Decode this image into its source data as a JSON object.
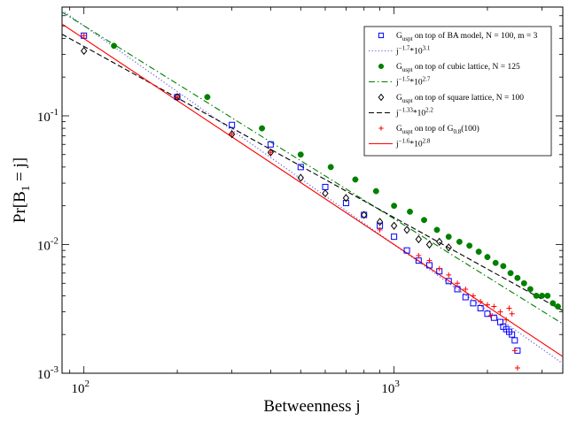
{
  "chart_data": {
    "type": "scatter",
    "xlabel": "Betweenness j",
    "ylabel": "Pr[B_1 = j]",
    "xscale": "log",
    "yscale": "log",
    "xlim": [
      85,
      3500
    ],
    "ylim": [
      0.001,
      0.7
    ],
    "x_ticks": [
      {
        "value": 100,
        "base": "10",
        "exp": "2"
      },
      {
        "value": 1000,
        "base": "10",
        "exp": "3"
      }
    ],
    "y_ticks": [
      {
        "value": 0.001,
        "base": "10",
        "exp": "-3"
      },
      {
        "value": 0.01,
        "base": "10",
        "exp": "-2"
      },
      {
        "value": 0.1,
        "base": "10",
        "exp": "-1"
      }
    ],
    "grid": false,
    "legend_position": "top-right",
    "series": [
      {
        "name": "G_uspt on top of BA model, N = 100, m = 3",
        "legend": {
          "main": "G",
          "sub": "uspt",
          "rest": " on top of BA model, N = 100, m = 3"
        },
        "kind": "scatter",
        "marker": "square",
        "color": "#0000ff",
        "x": [
          100,
          200,
          300,
          400,
          500,
          600,
          700,
          800,
          900,
          1000,
          1100,
          1200,
          1300,
          1400,
          1500,
          1600,
          1700,
          1800,
          1900,
          2000,
          2100,
          2200,
          2250,
          2300,
          2350,
          2400,
          2450,
          2500
        ],
        "y": [
          0.42,
          0.14,
          0.085,
          0.06,
          0.04,
          0.028,
          0.021,
          0.017,
          0.014,
          0.0115,
          0.009,
          0.0075,
          0.0069,
          0.0062,
          0.0052,
          0.0045,
          0.0039,
          0.0035,
          0.0032,
          0.0029,
          0.0027,
          0.0025,
          0.0023,
          0.0022,
          0.0021,
          0.002,
          0.0018,
          0.0015
        ]
      },
      {
        "name": "fit j^-1.7 * 10^3.1",
        "legend": {
          "main": "j",
          "sup": "−1.7",
          "rest": "*10",
          "sup2": "3.1"
        },
        "kind": "fit",
        "style": "dotted",
        "color": "#6b6bd8",
        "exponent": -1.7,
        "log10_coef": 3.1
      },
      {
        "name": "G_uspt on top of cubic lattice, N = 125",
        "legend": {
          "main": "G",
          "sub": "uspt",
          "rest": " on top of cubic lattice, N = 125"
        },
        "kind": "scatter",
        "marker": "circle",
        "color": "#008000",
        "x": [
          125,
          250,
          375,
          500,
          625,
          750,
          875,
          1000,
          1125,
          1250,
          1375,
          1500,
          1625,
          1750,
          1875,
          2000,
          2125,
          2250,
          2375,
          2500,
          2625,
          2750,
          2875,
          3000,
          3125,
          3250,
          3375
        ],
        "y": [
          0.35,
          0.14,
          0.08,
          0.05,
          0.04,
          0.032,
          0.026,
          0.02,
          0.018,
          0.0155,
          0.013,
          0.0115,
          0.0105,
          0.0098,
          0.0088,
          0.008,
          0.0072,
          0.0068,
          0.006,
          0.0055,
          0.005,
          0.0045,
          0.004,
          0.004,
          0.004,
          0.0035,
          0.0033
        ]
      },
      {
        "name": "fit j^-1.5 * 10^2.7",
        "legend": {
          "main": "j",
          "sup": "−1.5",
          "rest": "*10",
          "sup2": "2.7"
        },
        "kind": "fit",
        "style": "dashdot",
        "color": "#008000",
        "exponent": -1.5,
        "log10_coef": 2.7
      },
      {
        "name": "G_uspt on top of square lattice, N = 100",
        "legend": {
          "main": "G",
          "sub": "uspt",
          "rest": " on top of square lattice, N = 100"
        },
        "kind": "scatter",
        "marker": "diamond",
        "color": "#000000",
        "x": [
          100,
          200,
          300,
          400,
          500,
          600,
          700,
          800,
          900,
          1000,
          1100,
          1200,
          1300,
          1400,
          1500
        ],
        "y": [
          0.32,
          0.14,
          0.072,
          0.052,
          0.033,
          0.025,
          0.023,
          0.017,
          0.015,
          0.014,
          0.013,
          0.011,
          0.01,
          0.0105,
          0.0095
        ]
      },
      {
        "name": "fit j^-1.33 * 10^2.2",
        "legend": {
          "main": "j",
          "sup": "−1.33",
          "rest": "*10",
          "sup2": "2.2"
        },
        "kind": "fit",
        "style": "dashed",
        "color": "#000000",
        "exponent": -1.33,
        "log10_coef": 2.2
      },
      {
        "name": "G_uspt on top of G_0.8(100)",
        "legend": {
          "main": "G",
          "sub": "uspt",
          "rest": " on top of G",
          "sub2": "0.8",
          "rest2": "(100)"
        },
        "kind": "scatter",
        "marker": "plus",
        "color": "#ff0000",
        "x": [
          100,
          200,
          300,
          400,
          900,
          1200,
          1300,
          1400,
          1500,
          1600,
          1700,
          1800,
          1900,
          2000,
          2050,
          2100,
          2200,
          2300,
          2350,
          2400,
          2450,
          2500
        ],
        "y": [
          0.42,
          0.14,
          0.072,
          0.052,
          0.013,
          0.0082,
          0.0075,
          0.0065,
          0.0058,
          0.005,
          0.0045,
          0.004,
          0.0036,
          0.0034,
          0.0028,
          0.0033,
          0.003,
          0.0026,
          0.0032,
          0.0029,
          0.0015,
          0.0011
        ]
      },
      {
        "name": "fit j^-1.6 * 10^2.8",
        "legend": {
          "main": "j",
          "sup": "−1.6",
          "rest": "*10",
          "sup2": "2.8"
        },
        "kind": "fit",
        "style": "solid",
        "color": "#ff0000",
        "exponent": -1.6,
        "log10_coef": 2.8
      }
    ]
  }
}
